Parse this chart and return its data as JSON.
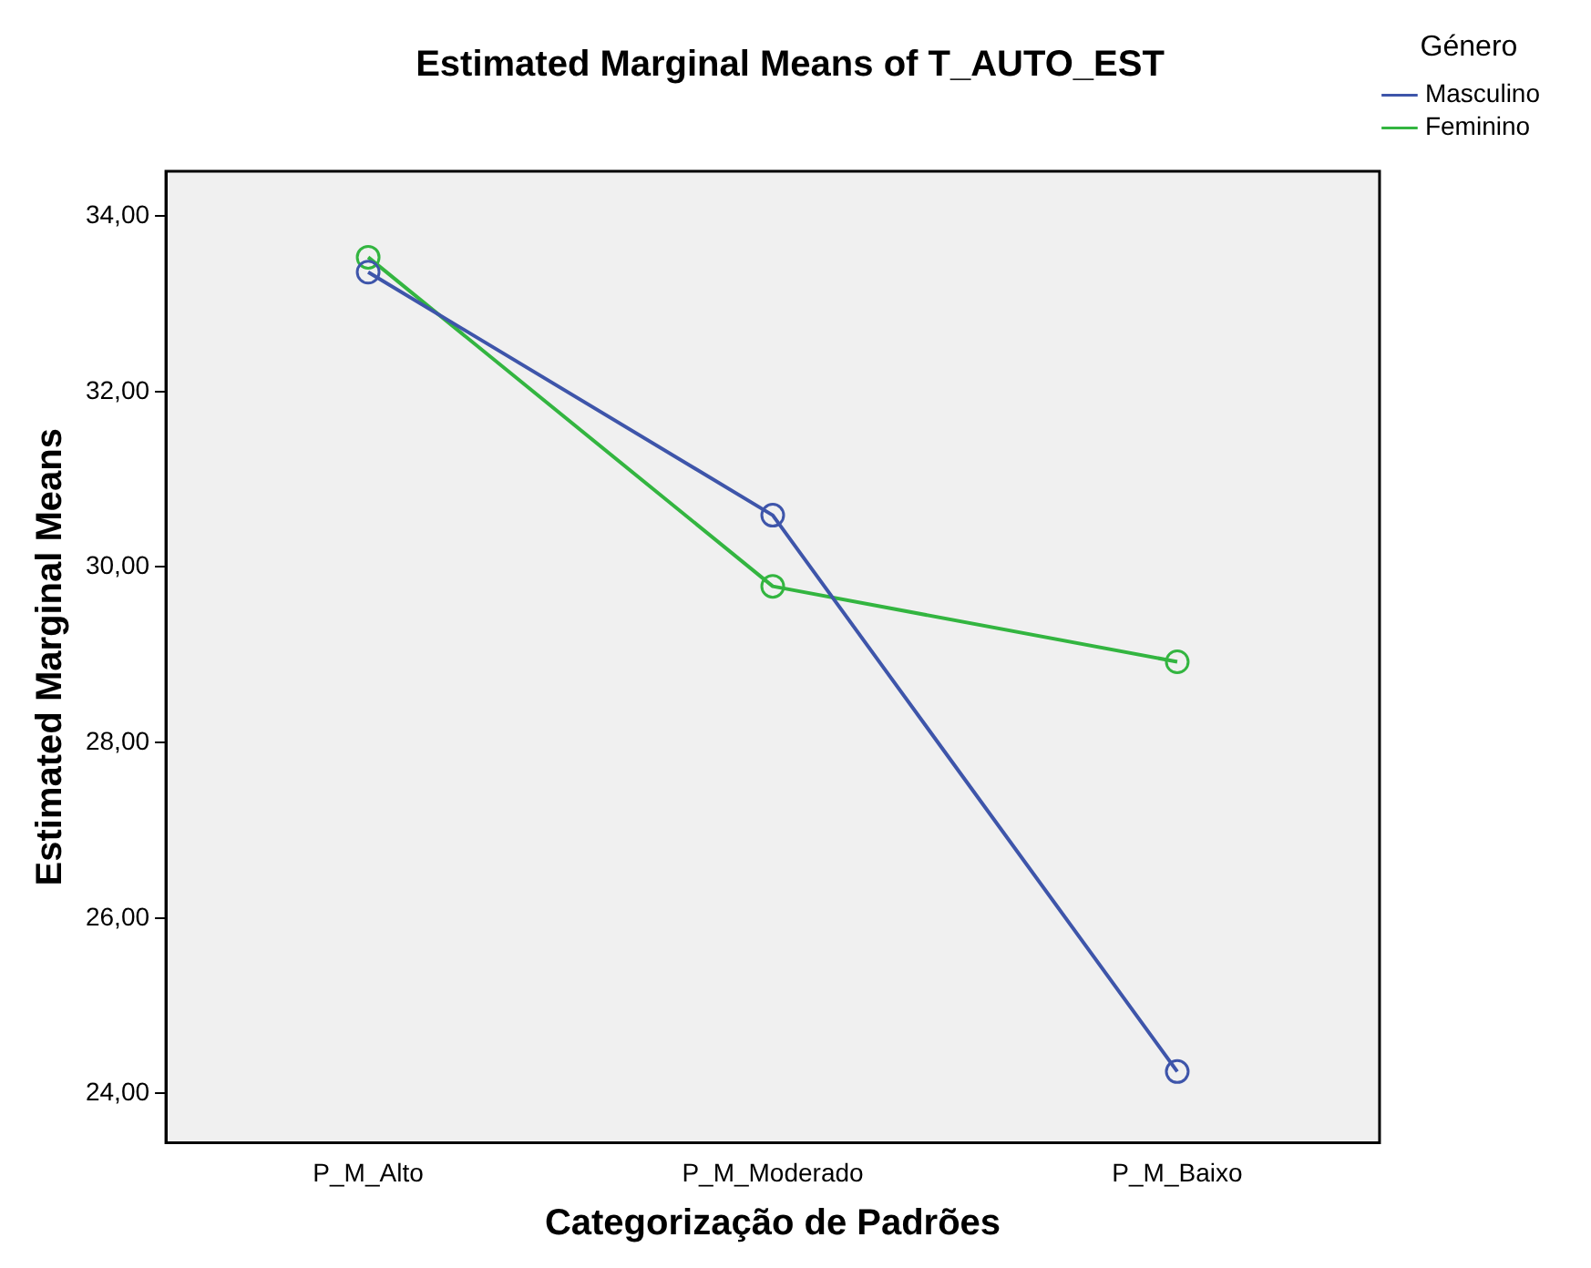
{
  "chart_data": {
    "type": "line",
    "title": "Estimated Marginal Means of T_AUTO_EST",
    "xlabel": "Categorização de Padrões",
    "ylabel": "Estimated Marginal Means",
    "legend_title": "Género",
    "categories": [
      "P_M_Alto",
      "P_M_Moderado",
      "P_M_Baixo"
    ],
    "series": [
      {
        "name": "Masculino",
        "color": "#3e55aa",
        "values": [
          33.36,
          30.59,
          24.25
        ]
      },
      {
        "name": "Feminino",
        "color": "#33b540",
        "values": [
          33.53,
          29.78,
          28.92
        ]
      }
    ],
    "ylim": [
      23.44,
      34.51
    ],
    "yticks": [
      {
        "value": 24,
        "label": "24,00"
      },
      {
        "value": 26,
        "label": "26,00"
      },
      {
        "value": 28,
        "label": "28,00"
      },
      {
        "value": 30,
        "label": "30,00"
      },
      {
        "value": 32,
        "label": "32,00"
      },
      {
        "value": 34,
        "label": "34,00"
      }
    ],
    "grid": false,
    "legend": "top right",
    "marker": "circle",
    "line_style": "solid"
  }
}
